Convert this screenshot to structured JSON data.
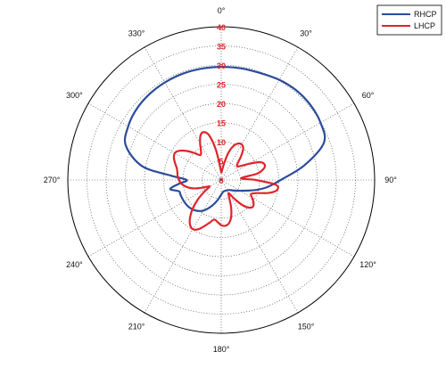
{
  "chart_data": {
    "type": "polar-line",
    "title": "",
    "theta_ticks": [
      {
        "deg": 0,
        "label": "0°"
      },
      {
        "deg": 30,
        "label": "30°"
      },
      {
        "deg": 60,
        "label": "60°"
      },
      {
        "deg": 90,
        "label": "90°"
      },
      {
        "deg": 120,
        "label": "120°"
      },
      {
        "deg": 150,
        "label": "150°"
      },
      {
        "deg": 180,
        "label": "180°"
      },
      {
        "deg": 210,
        "label": "210°"
      },
      {
        "deg": 240,
        "label": "240°"
      },
      {
        "deg": 270,
        "label": "270°"
      },
      {
        "deg": 300,
        "label": "300°"
      },
      {
        "deg": 330,
        "label": "330°"
      }
    ],
    "radial_ticks": [
      {
        "value": 0,
        "label": "0"
      },
      {
        "value": 5,
        "label": "5"
      },
      {
        "value": 10,
        "label": "10"
      },
      {
        "value": 15,
        "label": "15"
      },
      {
        "value": 20,
        "label": "20"
      },
      {
        "value": 25,
        "label": "25"
      },
      {
        "value": 30,
        "label": "30"
      },
      {
        "value": 35,
        "label": "35"
      },
      {
        "value": 40,
        "label": "40"
      }
    ],
    "rlim": [
      0,
      40
    ],
    "theta_zero": "top",
    "theta_direction": "clockwise",
    "grid": true,
    "legend_position": "top-right",
    "radial_label_color": "#e0242b",
    "series": [
      {
        "name": "RHCP",
        "color": "#2b4c9b",
        "theta": [
          0,
          10,
          20,
          30,
          40,
          50,
          60,
          70,
          80,
          90,
          95,
          100,
          105,
          110,
          115,
          120,
          130,
          140,
          150,
          160,
          170,
          180,
          190,
          200,
          210,
          220,
          230,
          240,
          250,
          255,
          260,
          265,
          270,
          275,
          280,
          290,
          300,
          310,
          320,
          330,
          340,
          350
        ],
        "r": [
          29.5,
          29.6,
          29.7,
          30.2,
          30.5,
          30.4,
          29.9,
          28.5,
          22.0,
          15.5,
          13.5,
          11.7,
          9.8,
          8.0,
          6.6,
          5.6,
          4.3,
          3.4,
          3.1,
          3.0,
          3.1,
          3.8,
          5.3,
          7.2,
          9.2,
          10.4,
          11.0,
          11.2,
          11.3,
          11.4,
          13.5,
          11.0,
          9.0,
          13.2,
          21.0,
          26.5,
          28.0,
          28.8,
          29.2,
          29.4,
          29.5,
          29.5
        ]
      },
      {
        "name": "LHCP",
        "color": "#e0242b",
        "theta": [
          0,
          5,
          10,
          15,
          20,
          25,
          30,
          35,
          40,
          45,
          50,
          55,
          60,
          65,
          70,
          75,
          80,
          85,
          90,
          95,
          100,
          105,
          110,
          115,
          120,
          125,
          130,
          135,
          140,
          145,
          150,
          155,
          160,
          165,
          170,
          175,
          180,
          185,
          190,
          195,
          200,
          205,
          210,
          215,
          220,
          225,
          230,
          235,
          240,
          245,
          250,
          255,
          260,
          265,
          270,
          275,
          280,
          285,
          290,
          295,
          300,
          305,
          310,
          315,
          320,
          325,
          330,
          335,
          340,
          345,
          350,
          355
        ],
        "r": [
          2.0,
          2.5,
          4.5,
          7.5,
          9.5,
          10.5,
          10.7,
          10.0,
          8.0,
          6.0,
          5.5,
          6.5,
          8.5,
          11.0,
          12.0,
          11.5,
          9.5,
          5.2,
          9.0,
          14.3,
          14.8,
          13.0,
          10.0,
          8.6,
          9.3,
          10.3,
          10.8,
          10.2,
          8.5,
          6.0,
          4.0,
          4.8,
          7.5,
          10.0,
          11.5,
          12.0,
          11.8,
          11.0,
          10.5,
          11.5,
          12.8,
          14.2,
          14.8,
          14.2,
          12.6,
          10.5,
          8.0,
          5.5,
          3.5,
          4.2,
          6.3,
          8.2,
          9.5,
          10.5,
          11.0,
          11.4,
          11.6,
          12.0,
          12.8,
          13.6,
          14.0,
          13.3,
          11.8,
          10.0,
          8.5,
          9.2,
          11.0,
          12.8,
          13.3,
          12.0,
          8.0,
          3.5
        ]
      }
    ]
  }
}
